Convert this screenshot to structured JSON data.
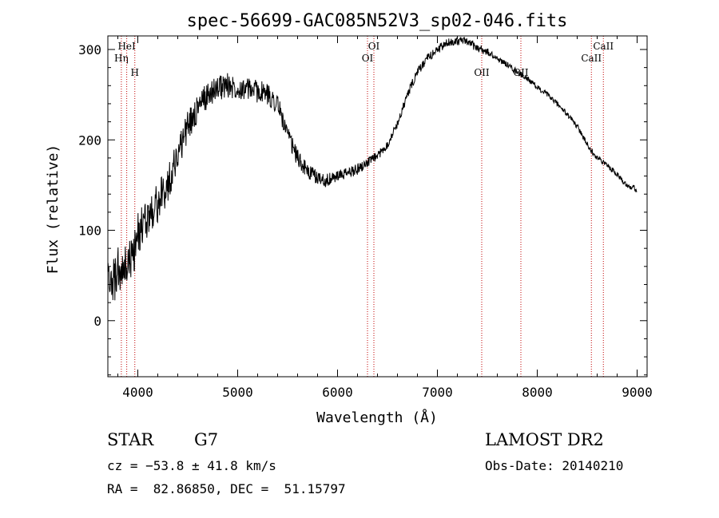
{
  "chart_data": {
    "type": "line",
    "title": "spec-56699-GAC085N52V3_sp02-046.fits",
    "xlabel": "Wavelength (Å)",
    "ylabel": "Flux (relative)",
    "xlim": [
      3700,
      9100
    ],
    "ylim": [
      -62,
      315
    ],
    "x_ticks": [
      4000,
      5000,
      6000,
      7000,
      8000,
      9000
    ],
    "y_ticks": [
      0,
      100,
      200,
      300
    ],
    "grid": false,
    "series": [
      {
        "color": "#000000",
        "x": [
          3700,
          3750,
          3800,
          3850,
          3900,
          3950,
          4000,
          4100,
          4200,
          4300,
          4400,
          4500,
          4600,
          4700,
          4800,
          4900,
          5000,
          5100,
          5200,
          5300,
          5400,
          5500,
          5600,
          5700,
          5800,
          5900,
          6000,
          6100,
          6200,
          6300,
          6400,
          6500,
          6600,
          6700,
          6800,
          6900,
          7000,
          7100,
          7200,
          7300,
          7400,
          7500,
          7600,
          7700,
          7800,
          7900,
          8000,
          8100,
          8200,
          8300,
          8400,
          8500,
          8600,
          8700,
          8800,
          8900,
          9000
        ],
        "values": [
          60,
          40,
          55,
          50,
          65,
          70,
          95,
          115,
          130,
          150,
          185,
          215,
          235,
          250,
          258,
          260,
          258,
          256,
          254,
          250,
          240,
          205,
          180,
          165,
          158,
          155,
          160,
          163,
          168,
          175,
          182,
          195,
          218,
          250,
          275,
          290,
          300,
          307,
          310,
          308,
          302,
          297,
          290,
          283,
          275,
          268,
          258,
          250,
          240,
          228,
          215,
          195,
          180,
          172,
          162,
          150,
          145
        ],
        "noise": [
          15,
          17,
          17,
          16,
          16,
          15,
          15,
          14,
          14,
          13,
          12,
          11,
          10,
          9,
          9,
          9,
          8,
          8,
          8,
          8,
          7,
          6,
          6,
          5,
          5,
          5,
          4,
          4,
          4,
          3,
          3,
          3,
          3,
          3,
          3,
          3,
          3,
          3,
          3,
          3,
          3,
          3,
          2,
          2,
          2,
          2,
          2,
          2,
          2,
          2,
          2,
          2,
          2,
          2,
          2,
          2,
          2
        ]
      }
    ],
    "lines": [
      {
        "x": 3835,
        "label": "Hη",
        "pos": "high"
      },
      {
        "x": 3889,
        "label": "HeI",
        "pos": "top"
      },
      {
        "x": 3970,
        "label": "H",
        "pos": "low"
      },
      {
        "x": 6300,
        "label": "OI",
        "pos": "high"
      },
      {
        "x": 6364,
        "label": "OI",
        "pos": "top"
      },
      {
        "x": 7444,
        "label": "OII",
        "pos": "low"
      },
      {
        "x": 7836,
        "label": "OII",
        "pos": "low"
      },
      {
        "x": 8542,
        "label": "CaII",
        "pos": "high"
      },
      {
        "x": 8662,
        "label": "CaII",
        "pos": "top"
      }
    ]
  },
  "info": {
    "object_type": "STAR",
    "subclass": "G7",
    "survey": "LAMOST DR2",
    "cz": "cz = −53.8 ± 41.8 km/s",
    "obs_date": "Obs-Date: 20140210",
    "coords": "RA =  82.86850, DEC =  51.15797"
  }
}
